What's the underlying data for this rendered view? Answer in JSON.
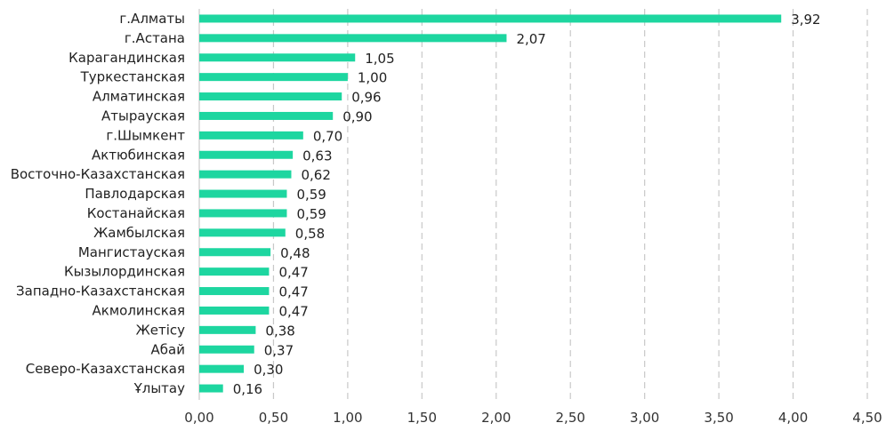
{
  "chart_data": {
    "type": "bar",
    "orientation": "horizontal",
    "title": "",
    "xlabel": "",
    "ylabel": "",
    "categories": [
      "г.Алматы",
      "г.Астана",
      "Карагандинская",
      "Туркестанская",
      "Алматинская",
      "Атырауская",
      "г.Шымкент",
      "Актюбинская",
      "Восточно-Казахстанская",
      "Павлодарская",
      "Костанайская",
      "Жамбылская",
      "Мангистауская",
      "Кызылординская",
      "Западно-Казахстанская",
      "Акмолинская",
      "Жетісу",
      "Абай",
      "Северо-Казахстанская",
      "Ұлытау"
    ],
    "values": [
      3.92,
      2.07,
      1.05,
      1.0,
      0.96,
      0.9,
      0.7,
      0.63,
      0.62,
      0.59,
      0.59,
      0.58,
      0.48,
      0.47,
      0.47,
      0.47,
      0.38,
      0.37,
      0.3,
      0.16
    ],
    "value_labels": [
      "3,92",
      "2,07",
      "1,05",
      "1,00",
      "0,96",
      "0,90",
      "0,70",
      "0,63",
      "0,62",
      "0,59",
      "0,59",
      "0,58",
      "0,48",
      "0,47",
      "0,47",
      "0,47",
      "0,38",
      "0,37",
      "0,30",
      "0,16"
    ],
    "xlim": [
      0,
      4.5
    ],
    "ticks": [
      0,
      0.5,
      1,
      1.5,
      2,
      2.5,
      3,
      3.5,
      4,
      4.5
    ],
    "tick_labels": [
      "0,00",
      "0,50",
      "1,00",
      "1,50",
      "2,00",
      "2,50",
      "3,00",
      "3,50",
      "4,00",
      "4,50"
    ],
    "grid": "vertical-dashed",
    "legend": "none",
    "bar_color": "#1dd6a0"
  }
}
